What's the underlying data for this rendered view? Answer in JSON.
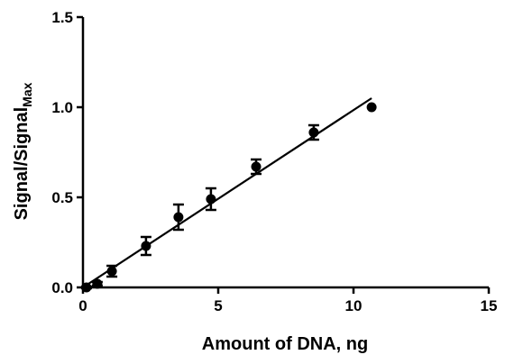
{
  "chart_data": {
    "type": "scatter",
    "title": "",
    "xlabel": "Amount of DNA, ng",
    "ylabel_main": "Signal/Signal",
    "ylabel_sub": "Max",
    "xlim": [
      0,
      15
    ],
    "ylim": [
      0,
      1.5
    ],
    "x_ticks": [
      0,
      5,
      10,
      15
    ],
    "x_tick_labels": [
      "0",
      "5",
      "10",
      "15"
    ],
    "y_ticks": [
      0,
      0.5,
      1.0,
      1.5
    ],
    "y_tick_labels": [
      "0.0",
      "0.5",
      "1.0",
      "1.5"
    ],
    "grid": false,
    "legend": "none",
    "marker_color": "#000000",
    "series": [
      {
        "points": [
          {
            "x": 0.13,
            "y": 0.0,
            "err": 0.005
          },
          {
            "x": 0.53,
            "y": 0.02,
            "err": 0.01
          },
          {
            "x": 1.07,
            "y": 0.09,
            "err": 0.03
          },
          {
            "x": 2.33,
            "y": 0.23,
            "err": 0.05
          },
          {
            "x": 3.53,
            "y": 0.39,
            "err": 0.07
          },
          {
            "x": 4.73,
            "y": 0.49,
            "err": 0.06
          },
          {
            "x": 6.4,
            "y": 0.67,
            "err": 0.04
          },
          {
            "x": 8.53,
            "y": 0.86,
            "err": 0.04
          },
          {
            "x": 10.67,
            "y": 1.0,
            "err": 0
          }
        ]
      }
    ],
    "fit_line": {
      "x": [
        0,
        10.67
      ],
      "y": [
        0.0,
        1.05
      ]
    }
  }
}
